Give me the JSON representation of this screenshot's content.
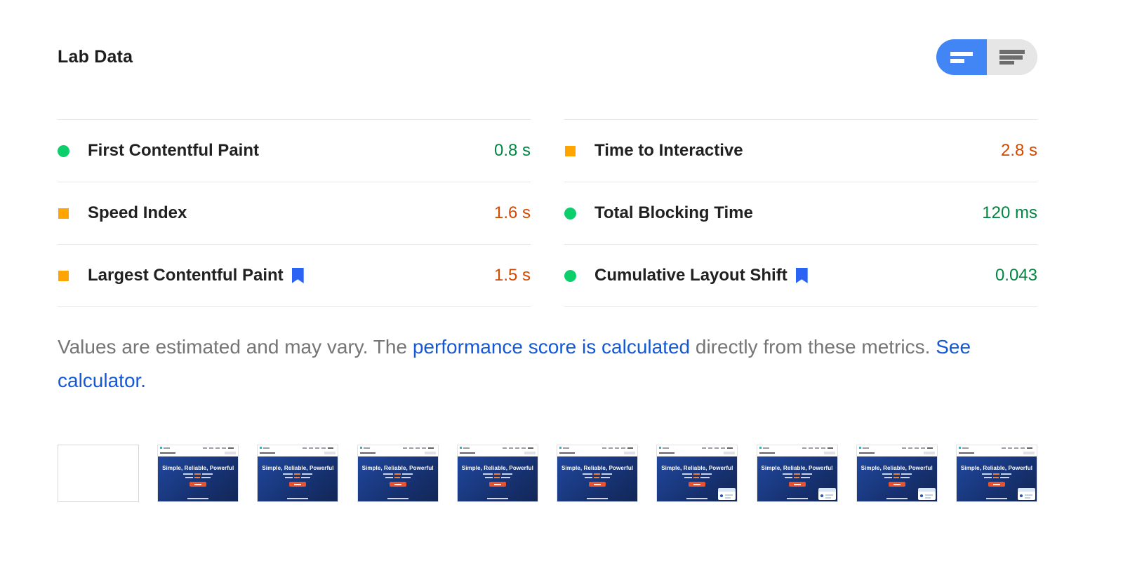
{
  "header": {
    "title": "Lab Data",
    "view_toggle": {
      "active_segment": "left",
      "left_icon": "condensed-list-icon",
      "right_icon": "full-list-icon"
    }
  },
  "metrics": [
    {
      "name": "First Contentful Paint",
      "value": "0.8 s",
      "rating": "good",
      "bookmark": false
    },
    {
      "name": "Speed Index",
      "value": "1.6 s",
      "rating": "average",
      "bookmark": false
    },
    {
      "name": "Largest Contentful Paint",
      "value": "1.5 s",
      "rating": "average",
      "bookmark": true
    },
    {
      "name": "Time to Interactive",
      "value": "2.8 s",
      "rating": "average",
      "bookmark": false
    },
    {
      "name": "Total Blocking Time",
      "value": "120 ms",
      "rating": "good",
      "bookmark": false
    },
    {
      "name": "Cumulative Layout Shift",
      "value": "0.043",
      "rating": "good",
      "bookmark": true
    }
  ],
  "disclaimer": {
    "prefix": "Values are estimated and may vary. The ",
    "link_performance": "performance score is calculated",
    "middle": " directly from these metrics. ",
    "link_calculator": "See calculator."
  },
  "filmstrip": {
    "frame_count": 10,
    "first_frame": "blank",
    "frames_with_chat_widget": [
      7,
      8,
      9,
      10
    ],
    "headline": "Simple, Reliable, Powerful"
  },
  "colors": {
    "good_icon": "#0CCE6B",
    "good_text": "#018642",
    "average_icon": "#FFA400",
    "average_text": "#D04900",
    "bookmark_blue": "#2B63F4",
    "link_blue": "#1558D6",
    "toggle_active_blue": "#4285F4",
    "toggle_inactive_gray": "#E6E6E6",
    "divider_gray": "#E7E7E7",
    "body_gray": "#757575",
    "hero_blue": "#1A3A8C",
    "cta_orange": "#E8532F"
  }
}
